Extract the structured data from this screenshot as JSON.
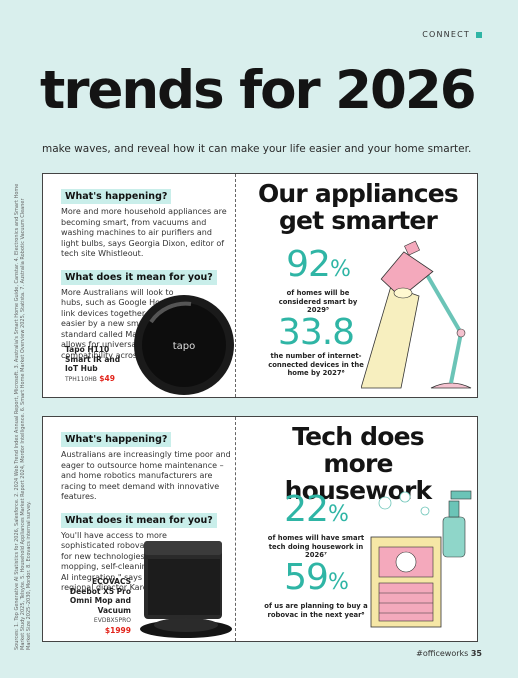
{
  "header": {
    "section": "CONNECT",
    "title": "trends for 2026",
    "subtitle": "make waves, and reveal how it can make your life easier and your home smarter."
  },
  "sources": "Sources: 1. Top Generative AI Statistics for 2026, Salesforce. 2. 2024 Web Trend Index Annual Report, Microsoft. 3. Australia's Smart Home Guide, Canstar. 4. Electronics and Smart Home Market Study 2025, Telsyte. 5. Household Appliances Market Report 2024, Mordor Intelligence. 6. Smart Home Market Overview 2025, Statista. 7. Australia Robotic Vacuum Cleaner Market Size 2025–2030, Mordor. 8. Ecovacs internal survey.",
  "panel1": {
    "q1": "What's happening?",
    "p1": "More and more household appliances are becoming smart, from vacuums and washing machines to air purifiers and light bulbs, says Georgia Dixon, editor of tech site Whistleout.",
    "q2": "What does it mean for you?",
    "p2": "More Australians will look to hubs, such as Google Home, to link devices together, made easier by a new smart home standard called Matter, which allows for universal compatibility across any brand.",
    "heading": "Our appliances get smarter",
    "stat1_num": "92",
    "stat1_unit": "%",
    "stat1_cap": "of homes will be considered smart by 2029⁵",
    "stat2_num": "33.8",
    "stat2_cap": "the number of internet-connected devices in the home by 2027⁶",
    "product_name": "Tapo H110 Smart IR and IoT Hub",
    "product_code": "TPH110HB",
    "product_price": "$49",
    "device_logo": "tapo"
  },
  "panel2": {
    "q1": "What's happening?",
    "p1": "Australians are increasingly time poor and eager to outsource home maintenance – and home robotics manufacturers are racing to meet demand with innovative features.",
    "q2": "What does it mean for you?",
    "p2": "You'll have access to more sophisticated robovacs. \"Look out for new technologies such as roller mopping, self-cleaning hubs and AI integration,\" says Ecovacs regional director Karen Powell.",
    "heading": "Tech does more housework",
    "stat1_num": "22",
    "stat1_unit": "%",
    "stat1_cap": "of homes will have smart tech doing housework in 2026⁷",
    "stat2_num": "59",
    "stat2_unit": "%",
    "stat2_cap": "of us are planning to buy a robovac in the next year⁸",
    "product_name": "ECOVACS Deebot X5 Pro Omni Mop and Vacuum",
    "product_code": "EVDBX5PRO",
    "product_price": "$1999"
  },
  "footer": {
    "hashtag": "#officeworks",
    "page": "35"
  },
  "colors": {
    "background": "#d9efed",
    "accent": "#2fb5a5",
    "highlight": "#c9eeea",
    "price": "#e2231a"
  }
}
